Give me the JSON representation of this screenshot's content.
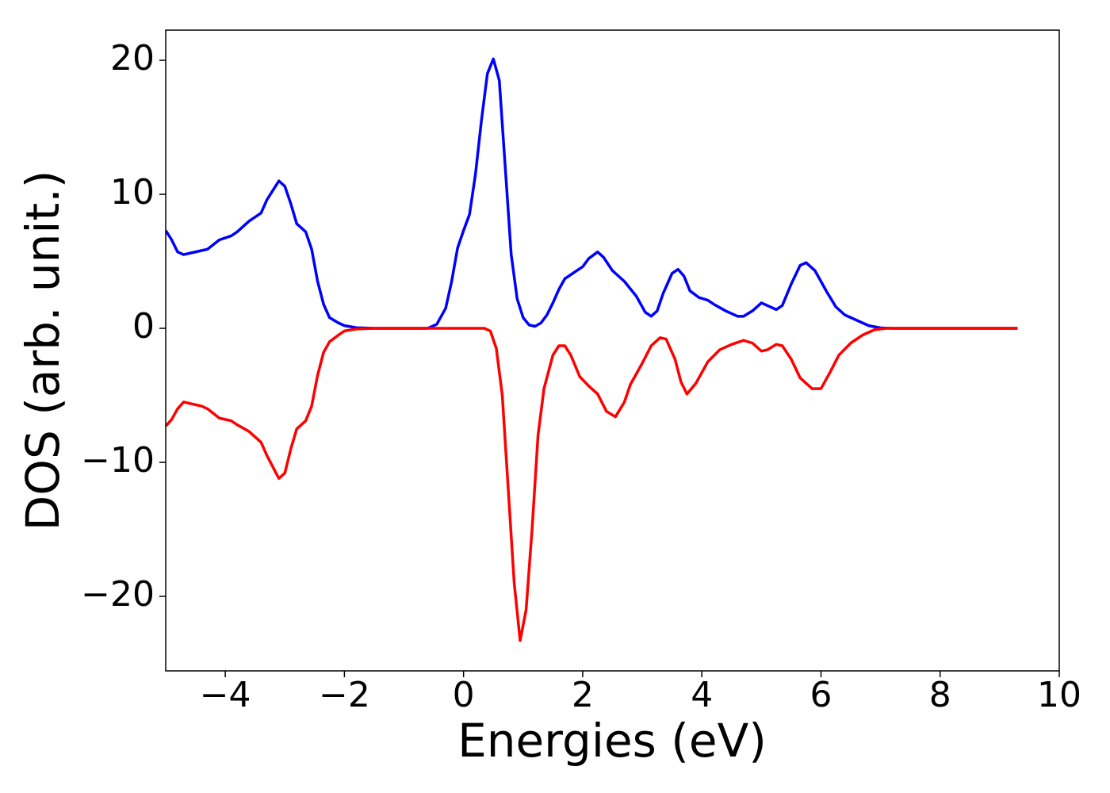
{
  "chart_data": {
    "type": "line",
    "xlabel": "Energies (eV)",
    "ylabel": "DOS (arb. unit.)",
    "xlim": [
      -5,
      10
    ],
    "ylim": [
      -25.56,
      22.25
    ],
    "xticks": [
      {
        "value": -4,
        "label": "−4"
      },
      {
        "value": -2,
        "label": "−2"
      },
      0,
      2,
      4,
      6,
      8,
      10
    ],
    "yticks": [
      {
        "value": -20,
        "label": "−20"
      },
      {
        "value": -10,
        "label": "−10"
      },
      0,
      10,
      20
    ],
    "series": [
      {
        "color": "#0000ff",
        "x": [
          -5,
          -4.9,
          -4.8,
          -4.7,
          -4.6,
          -4.4,
          -4.3,
          -4.1,
          -3.9,
          -3.8,
          -3.6,
          -3.4,
          -3.3,
          -3.1,
          -3.0,
          -2.9,
          -2.8,
          -2.65,
          -2.55,
          -2.45,
          -2.35,
          -2.25,
          -2.1,
          -2.0,
          -1.8,
          -1.5,
          -0.6,
          -0.45,
          -0.3,
          -0.2,
          -0.1,
          0,
          0.1,
          0.2,
          0.3,
          0.4,
          0.5,
          0.6,
          0.7,
          0.8,
          0.9,
          1.0,
          1.1,
          1.2,
          1.3,
          1.4,
          1.5,
          1.6,
          1.7,
          1.9,
          2.0,
          2.1,
          2.25,
          2.35,
          2.5,
          2.7,
          2.9,
          3.05,
          3.15,
          3.25,
          3.35,
          3.5,
          3.6,
          3.7,
          3.8,
          3.95,
          4.1,
          4.2,
          4.4,
          4.6,
          4.7,
          4.85,
          5.0,
          5.1,
          5.25,
          5.35,
          5.5,
          5.65,
          5.75,
          5.9,
          6.1,
          6.25,
          6.4,
          6.6,
          6.8,
          7.0,
          7.2,
          9.3
        ],
        "values": [
          7.3,
          6.6,
          5.7,
          5.5,
          5.6,
          5.8,
          5.9,
          6.6,
          6.9,
          7.2,
          8.0,
          8.6,
          9.6,
          11.0,
          10.6,
          9.3,
          7.8,
          7.2,
          5.9,
          3.5,
          1.8,
          0.8,
          0.4,
          0.2,
          0.05,
          0,
          0,
          0.3,
          1.5,
          3.5,
          6,
          7.3,
          8.5,
          11.5,
          15.5,
          19,
          20.1,
          18.5,
          12,
          5.5,
          2.2,
          0.8,
          0.25,
          0.15,
          0.4,
          1.0,
          1.9,
          2.9,
          3.7,
          4.3,
          4.6,
          5.2,
          5.7,
          5.3,
          4.3,
          3.5,
          2.4,
          1.2,
          0.9,
          1.3,
          2.6,
          4.1,
          4.4,
          3.9,
          2.8,
          2.3,
          2.1,
          1.8,
          1.3,
          0.9,
          0.9,
          1.3,
          1.9,
          1.7,
          1.4,
          1.7,
          3.3,
          4.7,
          4.9,
          4.3,
          2.7,
          1.6,
          1.0,
          0.6,
          0.2,
          0.03,
          0,
          0
        ]
      },
      {
        "color": "#ff0000",
        "x": [
          -5,
          -4.9,
          -4.8,
          -4.7,
          -4.6,
          -4.4,
          -4.3,
          -4.1,
          -3.9,
          -3.8,
          -3.6,
          -3.4,
          -3.3,
          -3.1,
          -3.0,
          -2.9,
          -2.8,
          -2.65,
          -2.55,
          -2.45,
          -2.35,
          -2.25,
          -2.1,
          -2.0,
          -1.8,
          -1.5,
          0.35,
          0.45,
          0.55,
          0.65,
          0.75,
          0.85,
          0.95,
          1.05,
          1.15,
          1.25,
          1.35,
          1.5,
          1.6,
          1.7,
          1.8,
          1.95,
          2.1,
          2.25,
          2.4,
          2.55,
          2.7,
          2.8,
          3.0,
          3.15,
          3.3,
          3.4,
          3.55,
          3.65,
          3.75,
          3.9,
          4.1,
          4.3,
          4.5,
          4.7,
          4.85,
          5.0,
          5.1,
          5.25,
          5.35,
          5.5,
          5.65,
          5.85,
          6.0,
          6.15,
          6.3,
          6.5,
          6.7,
          6.9,
          7.1,
          9.3
        ],
        "values": [
          -7.3,
          -6.8,
          -6.0,
          -5.5,
          -5.6,
          -5.8,
          -6.0,
          -6.7,
          -6.9,
          -7.2,
          -7.7,
          -8.5,
          -9.5,
          -11.2,
          -10.8,
          -9.0,
          -7.5,
          -6.9,
          -5.8,
          -3.5,
          -1.8,
          -1.0,
          -0.5,
          -0.2,
          -0.05,
          0,
          0,
          -0.2,
          -1.5,
          -5,
          -12,
          -19,
          -23.3,
          -21,
          -15,
          -8,
          -4.5,
          -2,
          -1.3,
          -1.3,
          -2,
          -3.6,
          -4.3,
          -4.9,
          -6.2,
          -6.6,
          -5.5,
          -4.2,
          -2.6,
          -1.3,
          -0.7,
          -0.8,
          -2.3,
          -4.0,
          -4.9,
          -4.1,
          -2.5,
          -1.6,
          -1.2,
          -0.9,
          -1.1,
          -1.7,
          -1.6,
          -1.2,
          -1.3,
          -2.3,
          -3.7,
          -4.5,
          -4.5,
          -3.3,
          -2.0,
          -1.1,
          -0.5,
          -0.1,
          0,
          0
        ]
      }
    ]
  }
}
